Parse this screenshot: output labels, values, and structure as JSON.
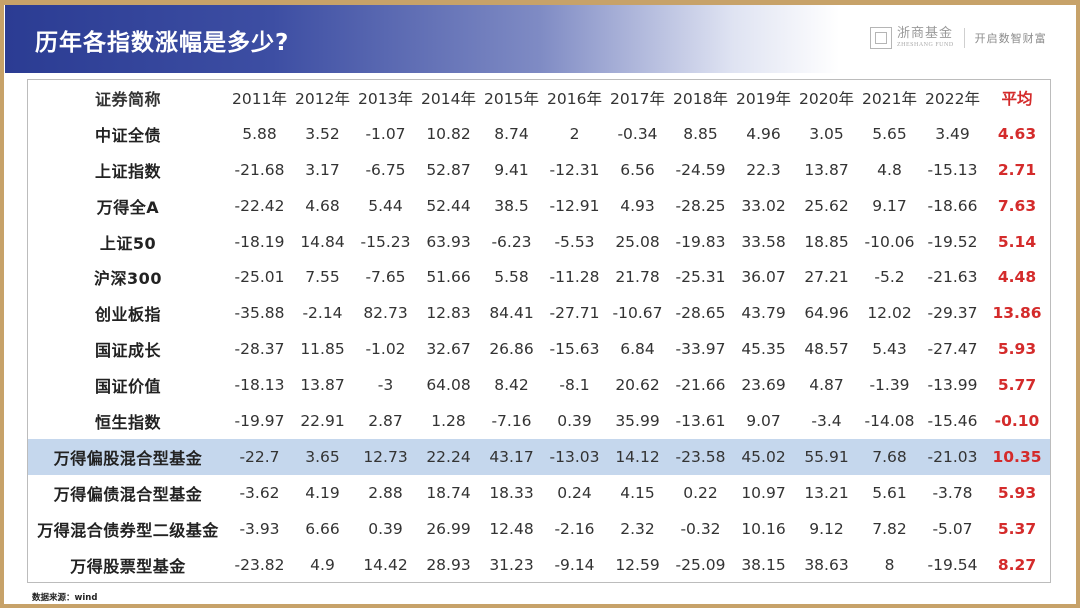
{
  "header": {
    "title": "历年各指数涨幅是多少?",
    "brand_name_cn": "浙商基金",
    "brand_name_en": "ZHESHANG FUND",
    "slogan": "开启数智财富"
  },
  "table": {
    "columns": [
      "证券简称",
      "2011年",
      "2012年",
      "2013年",
      "2014年",
      "2015年",
      "2016年",
      "2017年",
      "2018年",
      "2019年",
      "2020年",
      "2021年",
      "2022年",
      "平均"
    ],
    "rows": [
      {
        "name": "中证全债",
        "values": [
          "5.88",
          "3.52",
          "-1.07",
          "10.82",
          "8.74",
          "2",
          "-0.34",
          "8.85",
          "4.96",
          "3.05",
          "5.65",
          "3.49"
        ],
        "avg": "4.63"
      },
      {
        "name": "上证指数",
        "values": [
          "-21.68",
          "3.17",
          "-6.75",
          "52.87",
          "9.41",
          "-12.31",
          "6.56",
          "-24.59",
          "22.3",
          "13.87",
          "4.8",
          "-15.13"
        ],
        "avg": "2.71"
      },
      {
        "name": "万得全A",
        "values": [
          "-22.42",
          "4.68",
          "5.44",
          "52.44",
          "38.5",
          "-12.91",
          "4.93",
          "-28.25",
          "33.02",
          "25.62",
          "9.17",
          "-18.66"
        ],
        "avg": "7.63"
      },
      {
        "name": "上证50",
        "values": [
          "-18.19",
          "14.84",
          "-15.23",
          "63.93",
          "-6.23",
          "-5.53",
          "25.08",
          "-19.83",
          "33.58",
          "18.85",
          "-10.06",
          "-19.52"
        ],
        "avg": "5.14"
      },
      {
        "name": "沪深300",
        "values": [
          "-25.01",
          "7.55",
          "-7.65",
          "51.66",
          "5.58",
          "-11.28",
          "21.78",
          "-25.31",
          "36.07",
          "27.21",
          "-5.2",
          "-21.63"
        ],
        "avg": "4.48"
      },
      {
        "name": "创业板指",
        "values": [
          "-35.88",
          "-2.14",
          "82.73",
          "12.83",
          "84.41",
          "-27.71",
          "-10.67",
          "-28.65",
          "43.79",
          "64.96",
          "12.02",
          "-29.37"
        ],
        "avg": "13.86"
      },
      {
        "name": "国证成长",
        "values": [
          "-28.37",
          "11.85",
          "-1.02",
          "32.67",
          "26.86",
          "-15.63",
          "6.84",
          "-33.97",
          "45.35",
          "48.57",
          "5.43",
          "-27.47"
        ],
        "avg": "5.93"
      },
      {
        "name": "国证价值",
        "values": [
          "-18.13",
          "13.87",
          "-3",
          "64.08",
          "8.42",
          "-8.1",
          "20.62",
          "-21.66",
          "23.69",
          "4.87",
          "-1.39",
          "-13.99"
        ],
        "avg": "5.77"
      },
      {
        "name": "恒生指数",
        "values": [
          "-19.97",
          "22.91",
          "2.87",
          "1.28",
          "-7.16",
          "0.39",
          "35.99",
          "-13.61",
          "9.07",
          "-3.4",
          "-14.08",
          "-15.46"
        ],
        "avg": "-0.10"
      },
      {
        "name": "万得偏股混合型基金",
        "values": [
          "-22.7",
          "3.65",
          "12.73",
          "22.24",
          "43.17",
          "-13.03",
          "14.12",
          "-23.58",
          "45.02",
          "55.91",
          "7.68",
          "-21.03"
        ],
        "avg": "10.35",
        "highlight": true
      },
      {
        "name": "万得偏债混合型基金",
        "values": [
          "-3.62",
          "4.19",
          "2.88",
          "18.74",
          "18.33",
          "0.24",
          "4.15",
          "0.22",
          "10.97",
          "13.21",
          "5.61",
          "-3.78"
        ],
        "avg": "5.93"
      },
      {
        "name": "万得混合债券型二级基金",
        "values": [
          "-3.93",
          "6.66",
          "0.39",
          "26.99",
          "12.48",
          "-2.16",
          "2.32",
          "-0.32",
          "10.16",
          "9.12",
          "7.82",
          "-5.07"
        ],
        "avg": "5.37"
      },
      {
        "name": "万得股票型基金",
        "values": [
          "-23.82",
          "4.9",
          "14.42",
          "28.93",
          "31.23",
          "-9.14",
          "12.59",
          "-25.09",
          "38.15",
          "38.63",
          "8",
          "-19.54"
        ],
        "avg": "8.27"
      }
    ]
  },
  "footer": {
    "source": "数据来源：wind"
  },
  "colors": {
    "header_blue": "#2b3c93",
    "frame_gold": "#c7a269",
    "average_red": "#d42b2b",
    "highlight_row": "#c5d7ed"
  }
}
